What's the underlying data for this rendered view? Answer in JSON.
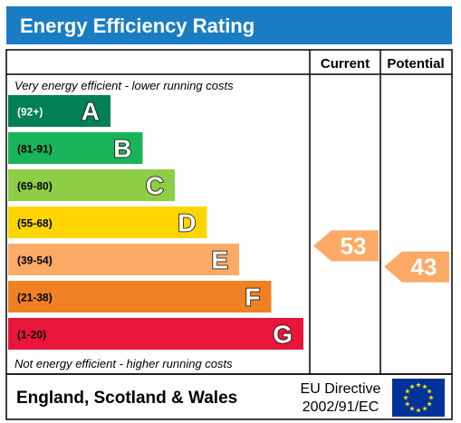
{
  "title": "Energy Efficiency Rating",
  "columns": {
    "current": "Current",
    "potential": "Potential"
  },
  "top_note": "Very energy efficient - lower running costs",
  "bottom_note": "Not energy efficient - higher running costs",
  "footer": {
    "region": "England, Scotland & Wales",
    "directive_line1": "EU Directive",
    "directive_line2": "2002/91/EC",
    "flag_icon": "eu-flag-icon"
  },
  "colors": {
    "title_bar": "#1a7dc3",
    "title_text": "#ffffff",
    "frame": "#000000"
  },
  "chart_data": {
    "type": "bar",
    "title": "Energy Efficiency Rating",
    "categories": [
      "A",
      "B",
      "C",
      "D",
      "E",
      "F",
      "G"
    ],
    "bands": [
      {
        "letter": "A",
        "range": "(92+)",
        "min": 92,
        "max": 100,
        "color": "#008054"
      },
      {
        "letter": "B",
        "range": "(81-91)",
        "min": 81,
        "max": 91,
        "color": "#19b459"
      },
      {
        "letter": "C",
        "range": "(69-80)",
        "min": 69,
        "max": 80,
        "color": "#8dce46"
      },
      {
        "letter": "D",
        "range": "(55-68)",
        "min": 55,
        "max": 68,
        "color": "#ffd500"
      },
      {
        "letter": "E",
        "range": "(39-54)",
        "min": 39,
        "max": 54,
        "color": "#fcaa65"
      },
      {
        "letter": "F",
        "range": "(21-38)",
        "min": 21,
        "max": 38,
        "color": "#ef8023"
      },
      {
        "letter": "G",
        "range": "(1-20)",
        "min": 1,
        "max": 20,
        "color": "#e9153b"
      }
    ],
    "ratings": [
      {
        "column": "Current",
        "value": 53,
        "band": "E",
        "color": "#fcaa65"
      },
      {
        "column": "Potential",
        "value": 43,
        "band": "E",
        "color": "#fcaa65"
      }
    ]
  }
}
